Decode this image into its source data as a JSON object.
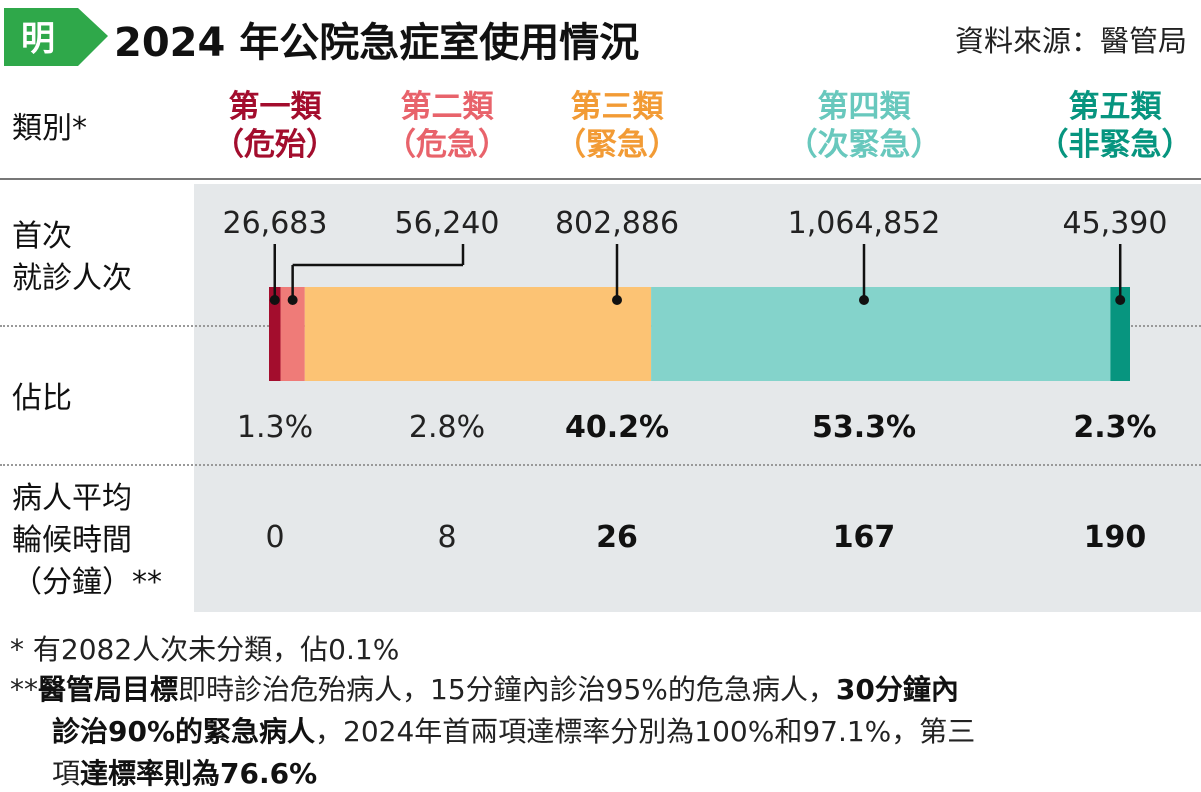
{
  "header": {
    "logo_text": "明",
    "title": "2024 年公院急症室使用情況",
    "source": "資料來源：醫管局"
  },
  "row_labels": {
    "category": "類別*",
    "first_visit": [
      "首次",
      "就診人次"
    ],
    "share": "佔比",
    "wait": [
      "病人平均",
      "輪候時間",
      "（分鐘）**"
    ]
  },
  "categories": [
    {
      "name": "第一類",
      "sub": "（危殆）",
      "color": "#a30d2d",
      "bar_color": "#a30d2d",
      "attendances": "26,683",
      "share": "1.3%",
      "wait": "0",
      "emphasis": false
    },
    {
      "name": "第二類",
      "sub": "（危急）",
      "color": "#e8636b",
      "bar_color": "#ef7b78",
      "attendances": "56,240",
      "share": "2.8%",
      "wait": "8",
      "emphasis": false
    },
    {
      "name": "第三類",
      "sub": "（緊急）",
      "color": "#f29b35",
      "bar_color": "#fcc374",
      "attendances": "802,886",
      "share": "40.2%",
      "wait": "26",
      "emphasis": true
    },
    {
      "name": "第四類",
      "sub": "（次緊急）",
      "color": "#68c8bd",
      "bar_color": "#84d3cb",
      "attendances": "1,064,852",
      "share": "53.3%",
      "wait": "167",
      "emphasis": true
    },
    {
      "name": "第五類",
      "sub": "（非緊急）",
      "color": "#07957f",
      "bar_color": "#07957f",
      "attendances": "45,390",
      "share": "2.3%",
      "wait": "190",
      "emphasis": true
    }
  ],
  "chart_data": {
    "type": "bar",
    "orientation": "horizontal-stacked",
    "categories": [
      "第一類（危殆）",
      "第二類（危急）",
      "第三類（緊急）",
      "第四類（次緊急）",
      "第五類（非緊急）"
    ],
    "series": [
      {
        "name": "首次就診人次",
        "values": [
          26683,
          56240,
          802886,
          1064852,
          45390
        ]
      },
      {
        "name": "佔比",
        "values": [
          1.3,
          2.8,
          40.2,
          53.3,
          2.3
        ]
      },
      {
        "name": "病人平均輪候時間（分鐘）",
        "values": [
          0,
          8,
          26,
          167,
          190
        ]
      }
    ],
    "colors": [
      "#a30d2d",
      "#ef7b78",
      "#fcc374",
      "#84d3cb",
      "#07957f"
    ],
    "title": "2024 年公院急症室使用情況",
    "xlabel": "",
    "ylabel": ""
  },
  "notes": {
    "note1": "* 有2082人次未分類，佔0.1%",
    "note2_parts": [
      {
        "text": "**",
        "bold": false
      },
      {
        "text": "醫管局目標",
        "bold": true
      },
      {
        "text": "即時診治危殆病人，15分鐘內診治95%的危急病人，",
        "bold": false
      },
      {
        "text": "30分鐘內",
        "bold": true
      }
    ],
    "note3_parts": [
      {
        "text": "診治90%的緊急病人",
        "bold": true
      },
      {
        "text": "，2024年首兩項達標率分別為100%和97.1%，第三",
        "bold": false
      }
    ],
    "note4_parts": [
      {
        "text": "項",
        "bold": false
      },
      {
        "text": "達標率則為76.6%",
        "bold": true
      }
    ]
  }
}
